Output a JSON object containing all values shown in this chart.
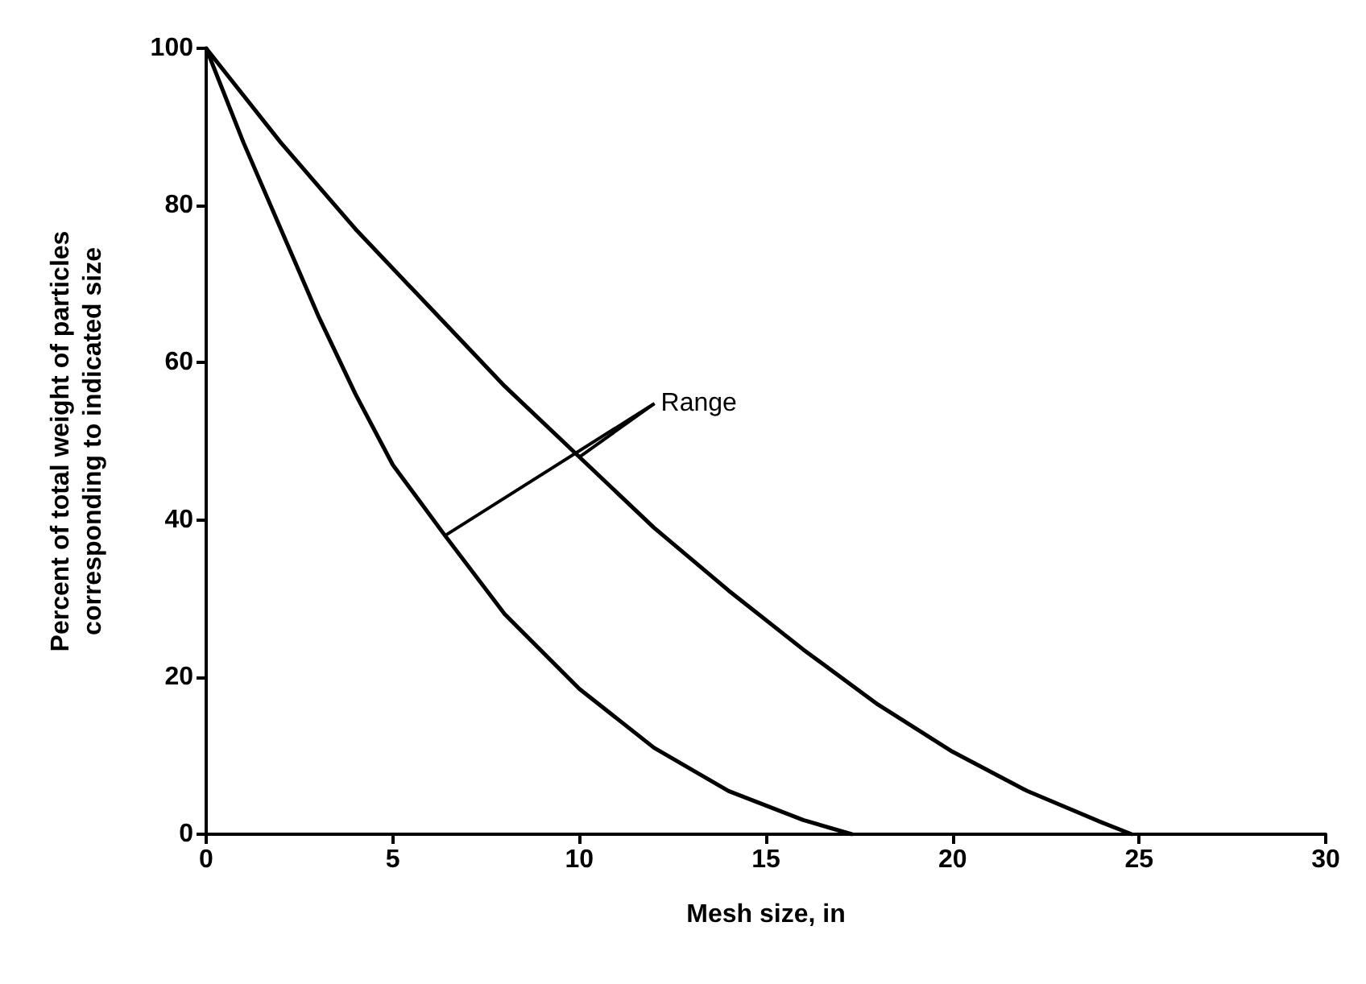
{
  "chart_data": {
    "type": "line",
    "xlabel": "Mesh size, in",
    "ylabel": "Percent of total weight of particles\ncorresponding to indicated size",
    "series": [
      {
        "color": "#000000",
        "x": [
          0,
          1,
          2,
          3,
          4,
          5,
          6.4,
          8,
          10,
          12,
          14,
          16,
          17.3
        ],
        "values": [
          100,
          88,
          77,
          66,
          56,
          47,
          38,
          28,
          18.5,
          11,
          5.5,
          1.8,
          0
        ]
      },
      {
        "color": "#000000",
        "x": [
          0,
          2,
          4,
          6,
          8,
          10,
          12,
          14,
          16,
          18,
          20,
          22,
          24,
          24.8
        ],
        "values": [
          100,
          88,
          77,
          67,
          57,
          48,
          39,
          31,
          23.5,
          16.5,
          10.5,
          5.5,
          1.5,
          0
        ]
      }
    ],
    "annotations": [
      {
        "text": "Range",
        "x": 6.4,
        "y": 38
      }
    ],
    "xlim": [
      0,
      30
    ],
    "xticks": [
      0,
      5,
      10,
      15,
      20,
      25,
      30
    ],
    "ylim": [
      0,
      100
    ],
    "yticks": [
      0,
      20,
      40,
      60,
      80,
      100
    ],
    "grid": false,
    "marker": "none",
    "line_style": "solid"
  }
}
